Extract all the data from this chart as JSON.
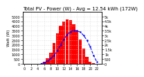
{
  "title": "Total PV - Power (W) - Avg = 12.54 kWh (172W)",
  "ylabel_left": "Watt (W)",
  "ylim": [
    0,
    5500
  ],
  "yticks": [
    0,
    500,
    1000,
    1500,
    2000,
    2500,
    3000,
    3500,
    4000,
    4500,
    5000
  ],
  "ytick_labels_right": [
    "5k",
    "4.5k",
    "4k",
    "3.5k",
    "3k",
    "2.5k",
    "2k",
    "1.5k",
    "1k",
    "500",
    "0"
  ],
  "background_color": "#ffffff",
  "bar_color": "#ff0000",
  "line_color": "#0000ff",
  "hours": [
    0,
    1,
    2,
    3,
    4,
    5,
    6,
    7,
    8,
    9,
    10,
    11,
    12,
    13,
    14,
    15,
    16,
    17,
    18,
    19,
    20,
    21,
    22,
    23
  ],
  "bar_values": [
    0,
    0,
    0,
    0,
    0,
    10,
    200,
    600,
    1200,
    2200,
    3200,
    4000,
    4500,
    4700,
    4600,
    4200,
    3500,
    2600,
    1600,
    700,
    200,
    30,
    0,
    0
  ],
  "avg_x": [
    0,
    1,
    2,
    3,
    4,
    5,
    6,
    7,
    8,
    9,
    10,
    11,
    12,
    13,
    14,
    15,
    16,
    17,
    18,
    19,
    20,
    21,
    22,
    23
  ],
  "avg_values": [
    0,
    0,
    0,
    0,
    0,
    5,
    100,
    280,
    550,
    900,
    1400,
    2000,
    2600,
    3100,
    3400,
    3550,
    3500,
    3350,
    3000,
    2500,
    1800,
    900,
    200,
    0
  ],
  "grid_color": "#cccccc",
  "title_fontsize": 5,
  "axis_fontsize": 4,
  "tick_fontsize": 3.5
}
